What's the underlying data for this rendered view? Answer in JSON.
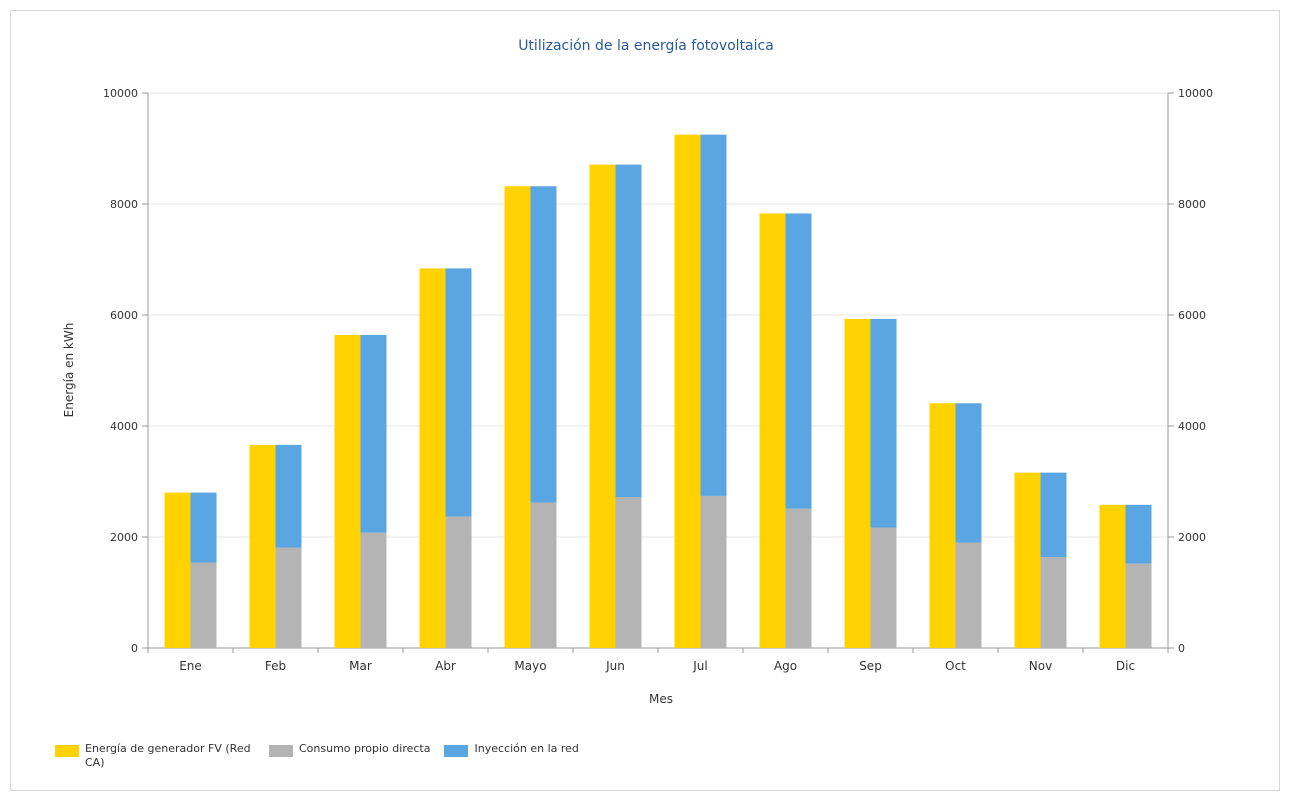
{
  "chart_data": {
    "type": "bar",
    "title": "Utilización de la energía fotovoltaica",
    "xlabel": "Mes",
    "ylabel": "Energía en kWh",
    "ylim": [
      0,
      10000
    ],
    "yticks": [
      "0",
      "2000",
      "4000",
      "6000",
      "8000",
      "10000"
    ],
    "secondary_y_axis": true,
    "grid": true,
    "legend_position": "bottom-left",
    "categories": [
      "Ene",
      "Feb",
      "Mar",
      "Abr",
      "Mayo",
      "Jun",
      "Jul",
      "Ago",
      "Sep",
      "Oct",
      "Nov",
      "Dic"
    ],
    "series": [
      {
        "name": "Energía de generador FV (Red CA)",
        "color": "#ffd200",
        "stack": "generation",
        "values": [
          2800,
          3660,
          5640,
          6840,
          8320,
          8710,
          9250,
          7830,
          5930,
          4410,
          3160,
          2580
        ]
      },
      {
        "name": "Consumo propio directa",
        "color": "#b4b4b4",
        "stack": "use",
        "values": [
          1540,
          1810,
          2080,
          2370,
          2620,
          2720,
          2740,
          2510,
          2170,
          1900,
          1640,
          1520
        ]
      },
      {
        "name": "Inyección en la red",
        "color": "#5aa6e2",
        "stack": "use",
        "values": [
          1260,
          1850,
          3560,
          4470,
          5700,
          5990,
          6510,
          5320,
          3760,
          2510,
          1520,
          1060
        ]
      }
    ]
  }
}
